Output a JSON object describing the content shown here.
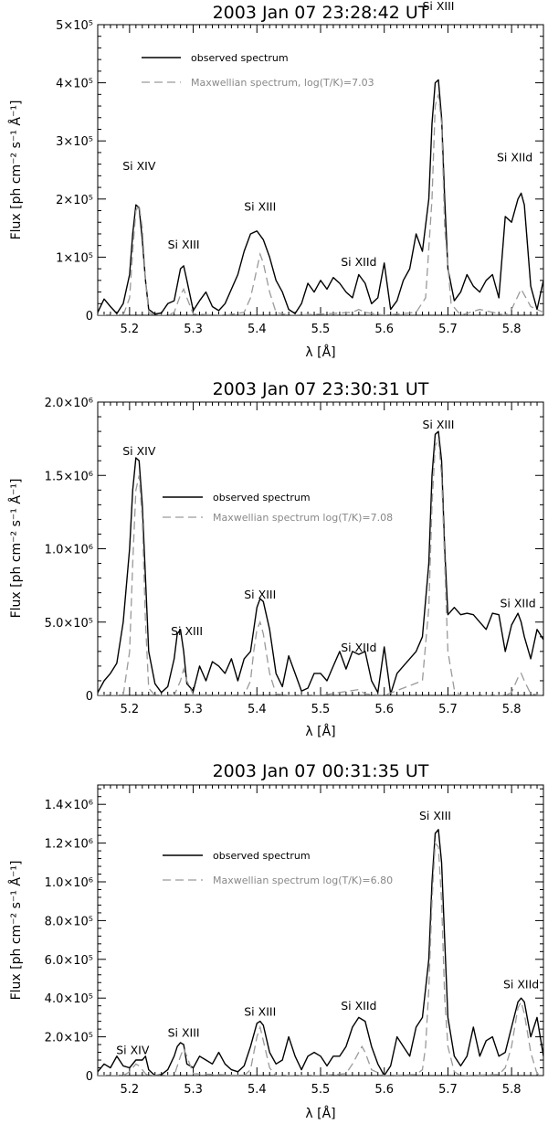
{
  "chart_data": [
    {
      "type": "line",
      "title": "2003 Jan 07 23:28:42 UT",
      "xlabel": "λ [Å]",
      "ylabel": "Flux [ph cm⁻² s⁻¹ Å⁻¹]",
      "xlim": [
        5.15,
        5.85
      ],
      "ylim": [
        0,
        500000
      ],
      "xticks": [
        5.2,
        5.3,
        5.4,
        5.5,
        5.6,
        5.7,
        5.8
      ],
      "xtick_labels": [
        "5.2",
        "5.3",
        "5.4",
        "5.5",
        "5.6",
        "5.7",
        "5.8"
      ],
      "yticks": [
        0,
        100000,
        200000,
        300000,
        400000,
        500000
      ],
      "ytick_labels": [
        "0",
        "1×10⁵",
        "2×10⁵",
        "3×10⁵",
        "4×10⁵",
        "5×10⁵"
      ],
      "legend": {
        "position": "top-left",
        "observed": "observed spectrum",
        "model": "Maxwellian spectrum, log(T/K)=7.03"
      },
      "annotations": [
        {
          "text": "Si XIV",
          "x": 5.215,
          "y": 250000
        },
        {
          "text": "Si XIII",
          "x": 5.285,
          "y": 115000
        },
        {
          "text": "Si XIII",
          "x": 5.405,
          "y": 180000
        },
        {
          "text": "Si XIId",
          "x": 5.56,
          "y": 85000
        },
        {
          "text": "Si XIII",
          "x": 5.685,
          "y": 525000
        },
        {
          "text": "Si XIId",
          "x": 5.805,
          "y": 265000
        }
      ],
      "series": [
        {
          "name": "observed spectrum",
          "x": [
            5.15,
            5.16,
            5.17,
            5.18,
            5.19,
            5.2,
            5.205,
            5.21,
            5.215,
            5.22,
            5.225,
            5.23,
            5.24,
            5.25,
            5.26,
            5.27,
            5.28,
            5.285,
            5.29,
            5.3,
            5.31,
            5.32,
            5.33,
            5.34,
            5.35,
            5.36,
            5.37,
            5.38,
            5.39,
            5.4,
            5.41,
            5.42,
            5.43,
            5.44,
            5.45,
            5.46,
            5.47,
            5.48,
            5.49,
            5.5,
            5.51,
            5.52,
            5.53,
            5.54,
            5.55,
            5.56,
            5.57,
            5.58,
            5.59,
            5.6,
            5.61,
            5.62,
            5.63,
            5.64,
            5.65,
            5.66,
            5.67,
            5.675,
            5.68,
            5.685,
            5.69,
            5.695,
            5.7,
            5.71,
            5.72,
            5.73,
            5.74,
            5.75,
            5.76,
            5.77,
            5.78,
            5.79,
            5.8,
            5.81,
            5.815,
            5.82,
            5.83,
            5.84,
            5.85
          ],
          "y": [
            5000,
            28000,
            15000,
            3000,
            20000,
            70000,
            140000,
            190000,
            185000,
            130000,
            60000,
            10000,
            2000,
            4000,
            20000,
            25000,
            80000,
            85000,
            60000,
            8000,
            25000,
            40000,
            15000,
            8000,
            20000,
            45000,
            70000,
            110000,
            140000,
            145000,
            130000,
            100000,
            60000,
            40000,
            10000,
            3000,
            20000,
            55000,
            40000,
            60000,
            45000,
            65000,
            55000,
            40000,
            30000,
            70000,
            55000,
            20000,
            30000,
            90000,
            10000,
            25000,
            60000,
            80000,
            140000,
            110000,
            200000,
            330000,
            400000,
            405000,
            340000,
            200000,
            80000,
            25000,
            40000,
            70000,
            50000,
            40000,
            60000,
            70000,
            30000,
            170000,
            160000,
            200000,
            210000,
            190000,
            50000,
            10000,
            60000
          ]
        },
        {
          "name": "Maxwellian spectrum, log(T/K)=7.03",
          "x": [
            5.15,
            5.19,
            5.2,
            5.205,
            5.21,
            5.215,
            5.22,
            5.225,
            5.23,
            5.24,
            5.26,
            5.27,
            5.28,
            5.285,
            5.29,
            5.3,
            5.35,
            5.38,
            5.39,
            5.4,
            5.405,
            5.41,
            5.42,
            5.43,
            5.45,
            5.5,
            5.55,
            5.56,
            5.57,
            5.6,
            5.65,
            5.665,
            5.675,
            5.68,
            5.685,
            5.69,
            5.695,
            5.705,
            5.72,
            5.75,
            5.77,
            5.79,
            5.8,
            5.815,
            5.83,
            5.85
          ],
          "y": [
            0,
            0,
            30000,
            110000,
            180000,
            190000,
            150000,
            60000,
            5000,
            0,
            0,
            5000,
            35000,
            45000,
            30000,
            2000,
            0,
            5000,
            30000,
            80000,
            105000,
            90000,
            40000,
            5000,
            0,
            2000,
            5000,
            10000,
            5000,
            0,
            5000,
            30000,
            200000,
            360000,
            380000,
            330000,
            150000,
            20000,
            0,
            10000,
            5000,
            0,
            10000,
            45000,
            15000,
            5000
          ]
        }
      ]
    },
    {
      "type": "line",
      "title": "2003 Jan 07 23:30:31 UT",
      "xlabel": "λ [Å]",
      "ylabel": "Flux [ph cm⁻² s⁻¹ Å⁻¹]",
      "xlim": [
        5.15,
        5.85
      ],
      "ylim": [
        0,
        2000000
      ],
      "xticks": [
        5.2,
        5.3,
        5.4,
        5.5,
        5.6,
        5.7,
        5.8
      ],
      "xtick_labels": [
        "5.2",
        "5.3",
        "5.4",
        "5.5",
        "5.6",
        "5.7",
        "5.8"
      ],
      "yticks": [
        0,
        500000,
        1000000,
        1500000,
        2000000
      ],
      "ytick_labels": [
        "0",
        "5.0×10⁵",
        "1.0×10⁶",
        "1.5×10⁶",
        "2.0×10⁶"
      ],
      "legend": {
        "position": "center",
        "observed": "observed spectrum",
        "model": "Maxwellian spectrum log(T/K)=7.08"
      },
      "annotations": [
        {
          "text": "Si XIV",
          "x": 5.215,
          "y": 1640000
        },
        {
          "text": "Si XIII",
          "x": 5.29,
          "y": 410000
        },
        {
          "text": "Si XIII",
          "x": 5.405,
          "y": 660000
        },
        {
          "text": "Si XIId",
          "x": 5.56,
          "y": 300000
        },
        {
          "text": "Si XIII",
          "x": 5.685,
          "y": 1820000
        },
        {
          "text": "Si XIId",
          "x": 5.81,
          "y": 600000
        }
      ],
      "series": [
        {
          "name": "observed spectrum",
          "x": [
            5.15,
            5.16,
            5.17,
            5.18,
            5.19,
            5.2,
            5.205,
            5.21,
            5.215,
            5.22,
            5.225,
            5.23,
            5.24,
            5.25,
            5.26,
            5.27,
            5.275,
            5.28,
            5.285,
            5.29,
            5.3,
            5.31,
            5.32,
            5.33,
            5.34,
            5.35,
            5.36,
            5.37,
            5.38,
            5.39,
            5.395,
            5.4,
            5.405,
            5.41,
            5.42,
            5.43,
            5.44,
            5.45,
            5.46,
            5.47,
            5.48,
            5.49,
            5.5,
            5.51,
            5.52,
            5.53,
            5.54,
            5.55,
            5.56,
            5.57,
            5.58,
            5.59,
            5.6,
            5.61,
            5.62,
            5.63,
            5.64,
            5.65,
            5.66,
            5.67,
            5.675,
            5.68,
            5.685,
            5.69,
            5.695,
            5.7,
            5.71,
            5.72,
            5.73,
            5.74,
            5.75,
            5.76,
            5.77,
            5.78,
            5.79,
            5.8,
            5.81,
            5.815,
            5.82,
            5.83,
            5.84,
            5.85
          ],
          "y": [
            20000,
            100000,
            150000,
            220000,
            500000,
            1000000,
            1400000,
            1620000,
            1600000,
            1300000,
            800000,
            300000,
            80000,
            20000,
            60000,
            250000,
            420000,
            450000,
            300000,
            80000,
            30000,
            200000,
            100000,
            230000,
            200000,
            150000,
            250000,
            100000,
            250000,
            300000,
            450000,
            600000,
            660000,
            640000,
            450000,
            150000,
            60000,
            270000,
            150000,
            30000,
            50000,
            150000,
            150000,
            100000,
            200000,
            300000,
            180000,
            300000,
            280000,
            300000,
            100000,
            20000,
            330000,
            10000,
            150000,
            200000,
            250000,
            300000,
            400000,
            900000,
            1500000,
            1780000,
            1800000,
            1600000,
            1000000,
            550000,
            600000,
            550000,
            560000,
            550000,
            500000,
            450000,
            560000,
            550000,
            300000,
            480000,
            560000,
            500000,
            400000,
            250000,
            450000,
            380000
          ]
        },
        {
          "name": "Maxwellian spectrum log(T/K)=7.08",
          "x": [
            5.15,
            5.19,
            5.2,
            5.205,
            5.21,
            5.215,
            5.22,
            5.225,
            5.23,
            5.24,
            5.27,
            5.28,
            5.285,
            5.29,
            5.3,
            5.38,
            5.39,
            5.395,
            5.4,
            5.405,
            5.41,
            5.42,
            5.43,
            5.45,
            5.5,
            5.56,
            5.57,
            5.6,
            5.66,
            5.67,
            5.675,
            5.68,
            5.685,
            5.69,
            5.695,
            5.7,
            5.71,
            5.72,
            5.79,
            5.8,
            5.81,
            5.815,
            5.82,
            5.83,
            5.85
          ],
          "y": [
            0,
            0,
            300000,
            900000,
            1400000,
            1500000,
            1200000,
            500000,
            50000,
            0,
            0,
            100000,
            180000,
            100000,
            5000,
            0,
            100000,
            300000,
            450000,
            500000,
            420000,
            150000,
            10000,
            0,
            0,
            40000,
            10000,
            0,
            100000,
            600000,
            1300000,
            1700000,
            1750000,
            1500000,
            900000,
            300000,
            40000,
            0,
            0,
            20000,
            120000,
            150000,
            100000,
            10000,
            0
          ]
        }
      ]
    },
    {
      "type": "line",
      "title": "2003 Jan 07 00:31:35 UT",
      "xlabel": "λ [Å]",
      "ylabel": "Flux [ph cm⁻² s⁻¹ Å⁻¹]",
      "xlim": [
        5.15,
        5.85
      ],
      "ylim": [
        0,
        1500000
      ],
      "xticks": [
        5.2,
        5.3,
        5.4,
        5.5,
        5.6,
        5.7,
        5.8
      ],
      "xtick_labels": [
        "5.2",
        "5.3",
        "5.4",
        "5.5",
        "5.6",
        "5.7",
        "5.8"
      ],
      "yticks": [
        0,
        200000,
        400000,
        600000,
        800000,
        1000000,
        1200000,
        1400000
      ],
      "ytick_labels": [
        "0",
        "2.0×10⁵",
        "4.0×10⁵",
        "6.0×10⁵",
        "8.0×10⁵",
        "1.0×10⁶",
        "1.2×10⁶",
        "1.4×10⁶"
      ],
      "legend": {
        "position": "center-left",
        "observed": "observed spectrum",
        "model": "Maxwellian spectrum log(T/K)=6.80"
      },
      "annotations": [
        {
          "text": "Si XIV",
          "x": 5.205,
          "y": 110000
        },
        {
          "text": "Si XIII",
          "x": 5.285,
          "y": 200000
        },
        {
          "text": "Si XIII",
          "x": 5.405,
          "y": 310000
        },
        {
          "text": "Si XIId",
          "x": 5.56,
          "y": 340000
        },
        {
          "text": "Si XIII",
          "x": 5.68,
          "y": 1320000
        },
        {
          "text": "Si XIId",
          "x": 5.815,
          "y": 450000
        }
      ],
      "series": [
        {
          "name": "observed spectrum",
          "x": [
            5.15,
            5.16,
            5.17,
            5.18,
            5.19,
            5.2,
            5.21,
            5.22,
            5.225,
            5.23,
            5.24,
            5.25,
            5.26,
            5.27,
            5.275,
            5.28,
            5.285,
            5.29,
            5.3,
            5.31,
            5.32,
            5.33,
            5.34,
            5.35,
            5.36,
            5.37,
            5.38,
            5.39,
            5.4,
            5.405,
            5.41,
            5.42,
            5.43,
            5.44,
            5.45,
            5.46,
            5.47,
            5.48,
            5.49,
            5.5,
            5.51,
            5.52,
            5.53,
            5.54,
            5.55,
            5.56,
            5.57,
            5.58,
            5.59,
            5.6,
            5.61,
            5.62,
            5.63,
            5.64,
            5.65,
            5.66,
            5.67,
            5.675,
            5.68,
            5.685,
            5.69,
            5.695,
            5.7,
            5.71,
            5.72,
            5.73,
            5.74,
            5.75,
            5.76,
            5.77,
            5.78,
            5.79,
            5.8,
            5.81,
            5.815,
            5.82,
            5.83,
            5.84,
            5.85
          ],
          "y": [
            20000,
            60000,
            40000,
            100000,
            50000,
            40000,
            80000,
            80000,
            100000,
            30000,
            0,
            5000,
            30000,
            100000,
            150000,
            170000,
            160000,
            60000,
            40000,
            100000,
            80000,
            60000,
            120000,
            60000,
            30000,
            20000,
            50000,
            150000,
            270000,
            280000,
            260000,
            120000,
            60000,
            80000,
            200000,
            100000,
            30000,
            100000,
            120000,
            100000,
            50000,
            100000,
            100000,
            150000,
            250000,
            300000,
            280000,
            150000,
            60000,
            0,
            50000,
            200000,
            150000,
            100000,
            250000,
            300000,
            600000,
            1000000,
            1250000,
            1270000,
            1100000,
            700000,
            300000,
            100000,
            50000,
            100000,
            250000,
            100000,
            180000,
            200000,
            100000,
            120000,
            250000,
            380000,
            400000,
            380000,
            200000,
            300000,
            100000
          ]
        },
        {
          "name": "Maxwellian spectrum log(T/K)=6.80",
          "x": [
            5.15,
            5.19,
            5.2,
            5.205,
            5.21,
            5.215,
            5.22,
            5.225,
            5.23,
            5.27,
            5.28,
            5.285,
            5.29,
            5.3,
            5.38,
            5.39,
            5.4,
            5.405,
            5.41,
            5.42,
            5.43,
            5.5,
            5.54,
            5.55,
            5.56,
            5.565,
            5.57,
            5.58,
            5.6,
            5.65,
            5.66,
            5.665,
            5.67,
            5.675,
            5.68,
            5.685,
            5.69,
            5.695,
            5.7,
            5.71,
            5.72,
            5.78,
            5.79,
            5.8,
            5.81,
            5.815,
            5.82,
            5.83,
            5.84,
            5.85
          ],
          "y": [
            0,
            0,
            20000,
            40000,
            60000,
            50000,
            30000,
            10000,
            0,
            0,
            100000,
            140000,
            100000,
            10000,
            0,
            30000,
            200000,
            250000,
            180000,
            40000,
            0,
            0,
            10000,
            60000,
            120000,
            150000,
            120000,
            30000,
            0,
            5000,
            30000,
            150000,
            450000,
            900000,
            1200000,
            1180000,
            900000,
            400000,
            150000,
            20000,
            0,
            5000,
            40000,
            150000,
            350000,
            380000,
            320000,
            120000,
            10000,
            0
          ]
        }
      ]
    }
  ]
}
